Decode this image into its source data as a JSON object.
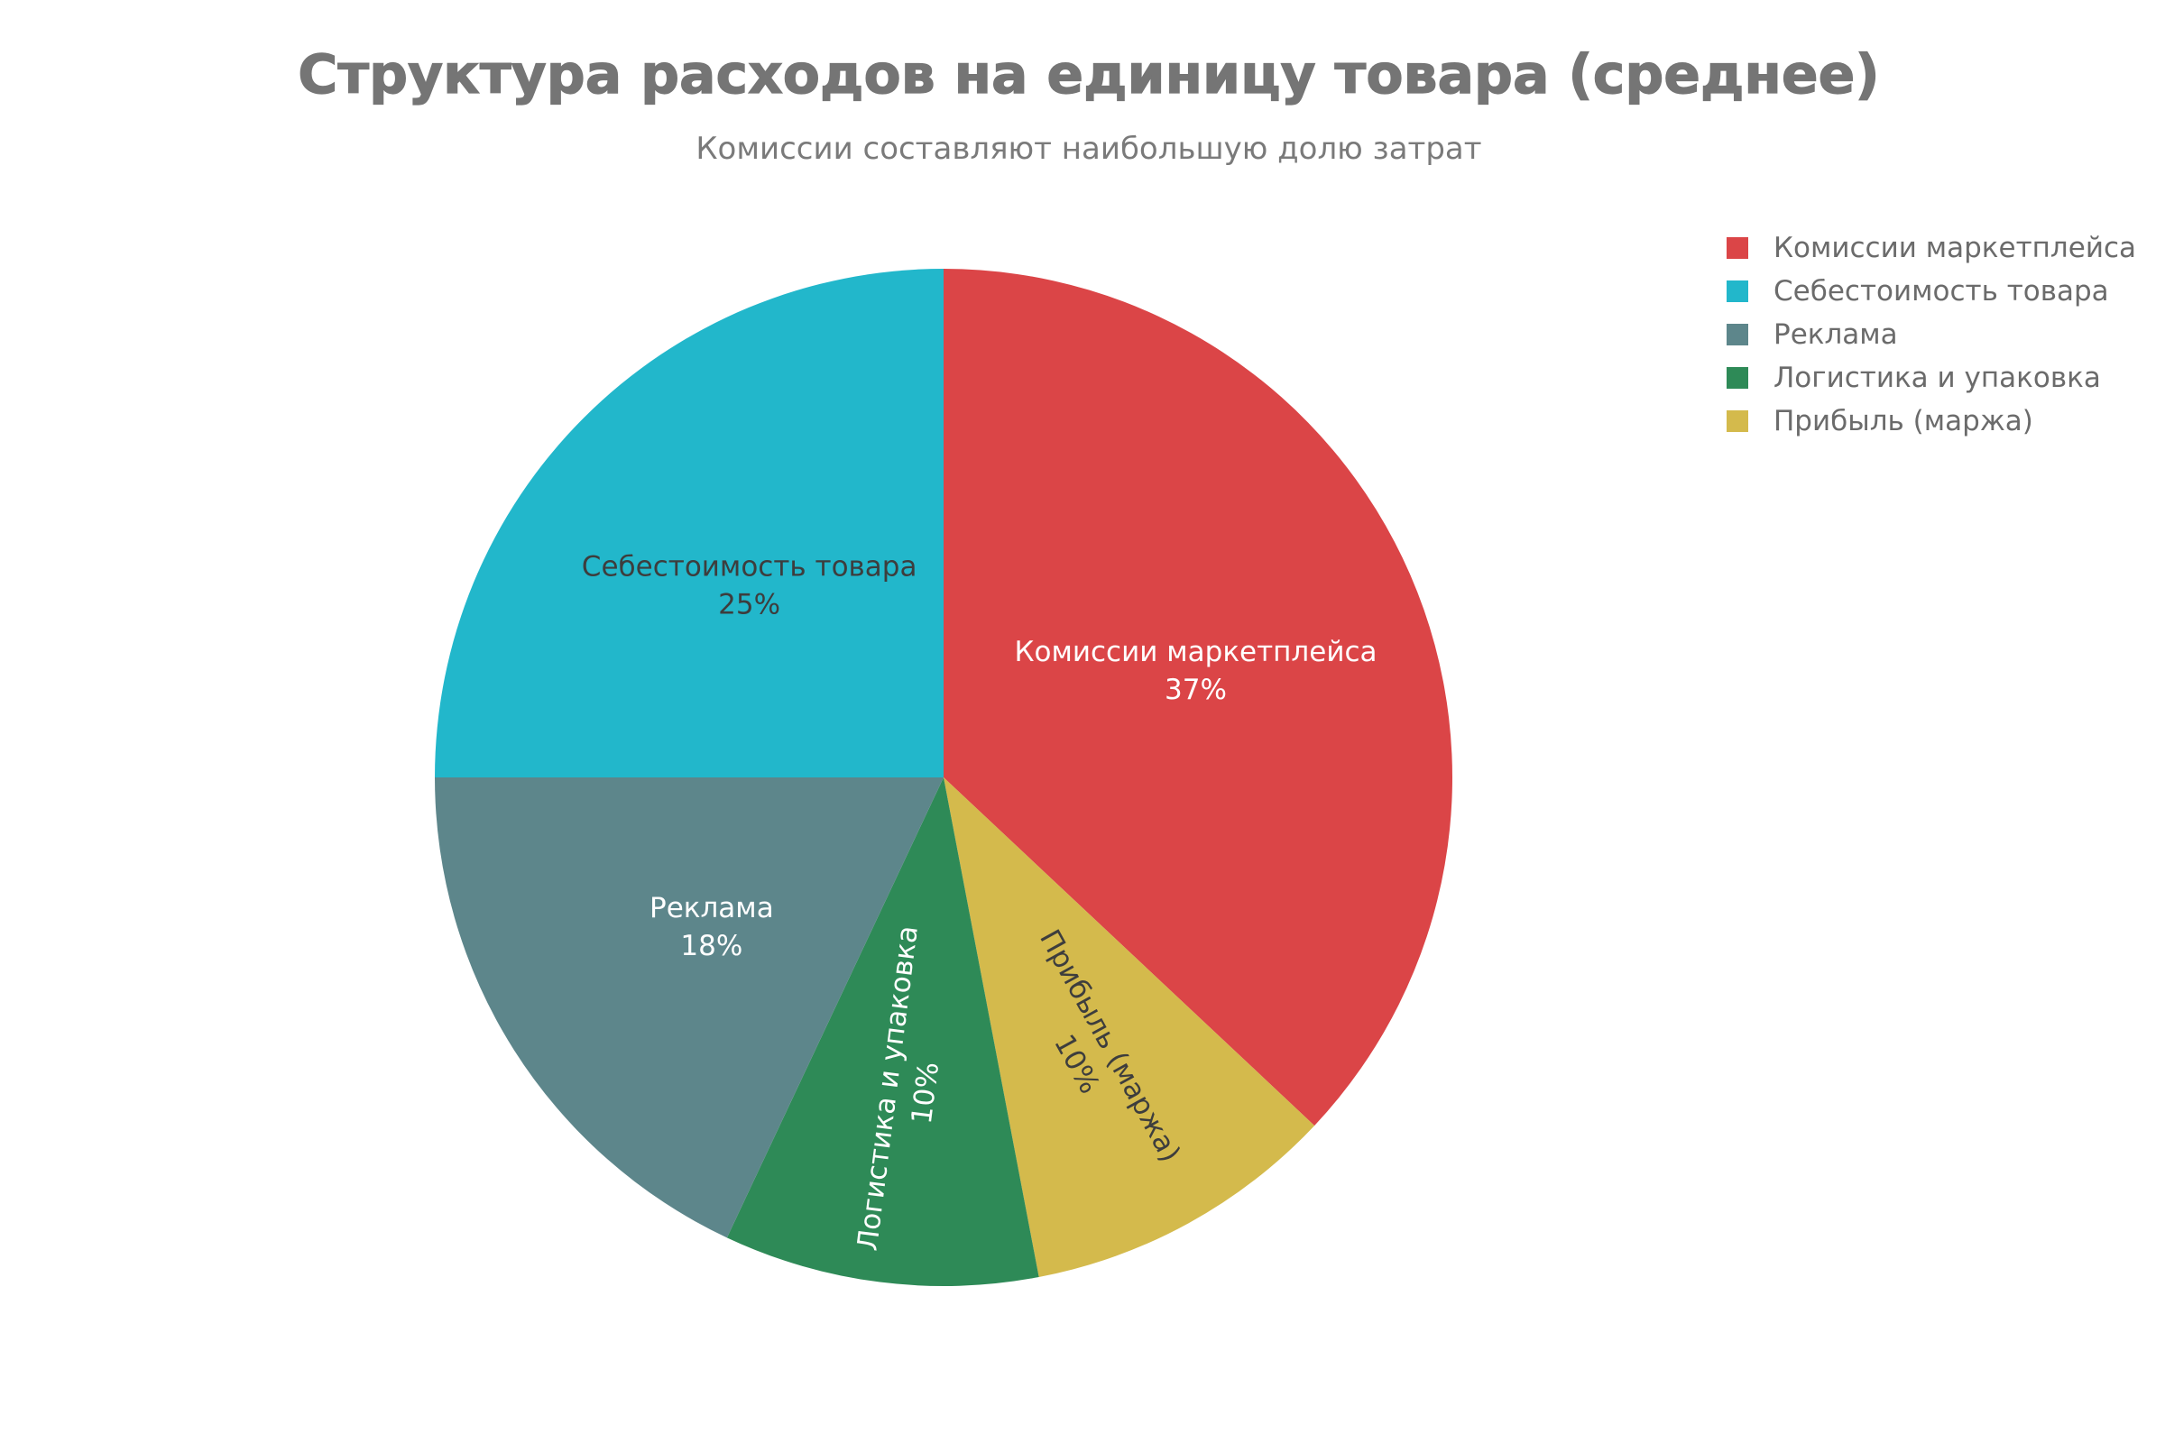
{
  "chart_data": {
    "type": "pie",
    "title": "Структура расходов на единицу товара (среднее)",
    "subtitle": "Комиссии составляют наибольшую долю затрат",
    "legend_position": "top-right",
    "slices": [
      {
        "label": "Комиссии маркетплейса",
        "value": 37,
        "value_label": "37%",
        "color": "#DB4547",
        "text_color": "#ffffff",
        "label_orientation": "horizontal"
      },
      {
        "label": "Прибыль (маржа)",
        "value": 10,
        "value_label": "10%",
        "color": "#D4BA4C",
        "text_color": "#3d3d3d",
        "label_orientation": "radial"
      },
      {
        "label": "Логистика и упаковка",
        "value": 10,
        "value_label": "10%",
        "color": "#2E8A57",
        "text_color": "#ffffff",
        "label_orientation": "radial"
      },
      {
        "label": "Реклама",
        "value": 18,
        "value_label": "18%",
        "color": "#5D868B",
        "text_color": "#ffffff",
        "label_orientation": "horizontal"
      },
      {
        "label": "Себестоимость товара",
        "value": 25,
        "value_label": "25%",
        "color": "#22B7CB",
        "text_color": "#3d3d3d",
        "label_orientation": "horizontal"
      }
    ],
    "legend": [
      {
        "label": "Комиссии маркетплейса",
        "color": "#DB4547"
      },
      {
        "label": "Себестоимость товара",
        "color": "#22B7CB"
      },
      {
        "label": "Реклама",
        "color": "#5D868B"
      },
      {
        "label": "Логистика и упаковка",
        "color": "#2E8A57"
      },
      {
        "label": "Прибыль (маржа)",
        "color": "#D4BA4C"
      }
    ]
  }
}
